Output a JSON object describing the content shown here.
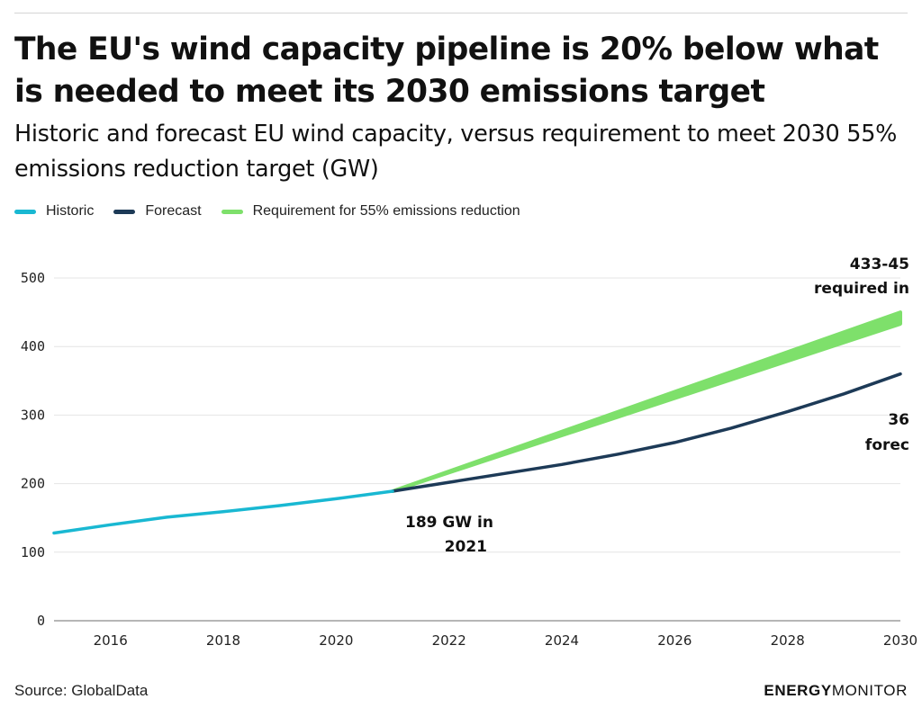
{
  "title": "The EU's wind capacity pipeline is 20% below what is needed to meet its 2030 emissions target",
  "subtitle": "Historic and forecast EU wind capacity, versus requirement to meet 2030 55% emissions reduction target (GW)",
  "source": "Source: GlobalData",
  "brand": {
    "bold": "ENERGY",
    "regular": "MONITOR"
  },
  "colors": {
    "historic": "#19b8d2",
    "forecast": "#1d3a57",
    "requirement": "#7ee06b",
    "grid": "#e4e4e4"
  },
  "chart_data": {
    "type": "line",
    "x_ticks": [
      "2016",
      "2018",
      "2020",
      "2022",
      "2024",
      "2026",
      "2028",
      "2030"
    ],
    "y_ticks": [
      "0",
      "100",
      "200",
      "300",
      "400",
      "500"
    ],
    "xlim": [
      2015,
      2030
    ],
    "ylim": [
      0,
      500
    ],
    "grid": true,
    "legend_position": "top-left",
    "legend": [
      "Historic",
      "Forecast",
      "Requirement for 55% emissions reduction"
    ],
    "series": [
      {
        "name": "Historic",
        "x": [
          2015,
          2016,
          2017,
          2018,
          2019,
          2020,
          2021
        ],
        "y": [
          128,
          140,
          151,
          159,
          168,
          178,
          189
        ]
      },
      {
        "name": "Forecast",
        "x": [
          2021,
          2022,
          2023,
          2024,
          2025,
          2026,
          2027,
          2028,
          2029,
          2030
        ],
        "y": [
          189,
          202,
          215,
          228,
          243,
          260,
          281,
          305,
          331,
          360
        ]
      },
      {
        "name": "Requirement for 55% emissions reduction",
        "x": [
          2021,
          2030
        ],
        "y_low": [
          189,
          433
        ],
        "y_high": [
          189,
          450
        ]
      }
    ],
    "annotations": [
      {
        "text_lines": [
          "189 GW in",
          "2021"
        ],
        "x": 2021,
        "y": 189
      },
      {
        "text_lines": [
          "433-45",
          "required in"
        ],
        "x": 2030,
        "y": 450
      },
      {
        "text_lines": [
          "36",
          "forec"
        ],
        "x": 2030,
        "y": 360
      }
    ]
  }
}
